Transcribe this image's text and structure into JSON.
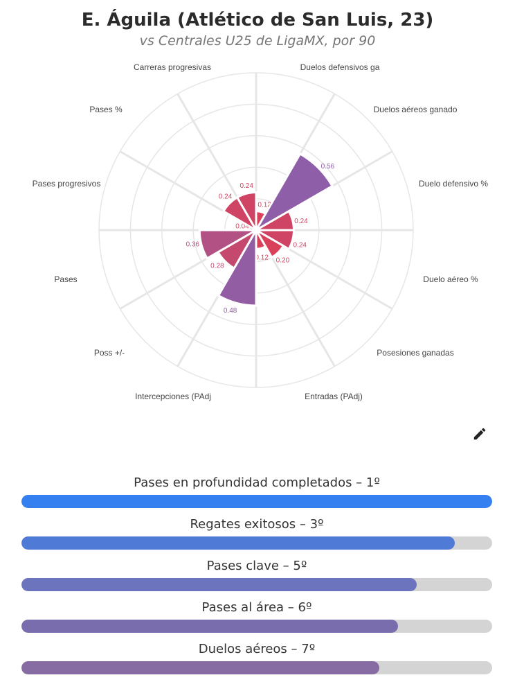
{
  "header": {
    "title": "E. Águila (Atlético de San Luis, 23)",
    "subtitle": "vs Centrales U25 de LigaMX, por 90"
  },
  "chart_data": {
    "type": "polar-bar",
    "title": "E. Águila (Atlético de San Luis, 23)",
    "subtitle": "vs Centrales U25 de LigaMX, por 90",
    "rlim": [
      0,
      1
    ],
    "grid": true,
    "categories": [
      "Duelos defensivos ga",
      "Duelos aéreos ganado",
      "Duelo defensivo %",
      "Duelo aéreo %",
      "Posesiones ganadas",
      "Entradas (PAdj)",
      "Intercepciones (PAdj",
      "Poss +/-",
      "Pases",
      "Pases progresivos",
      "Pases %",
      "Carreras progresivas"
    ],
    "values": [
      0.12,
      0.56,
      0.24,
      0.24,
      0.2,
      0.12,
      0.48,
      0.28,
      0.36,
      0.04,
      0.24,
      0.24
    ],
    "value_labels": [
      "0.12",
      "0.56",
      "0.24",
      "0.24",
      "0.20",
      "0.12",
      "0.48",
      "0.28",
      "0.36",
      "0.04",
      "0.24",
      "0.24"
    ],
    "colors": {
      "low": "#d9405a",
      "high": "#8e5fa8"
    }
  },
  "edit_icon": "pencil-icon",
  "rankings": [
    {
      "label": "Pases en profundidad completados – 1º",
      "percent": 100,
      "color": "#3580f0"
    },
    {
      "label": "Regates exitosos – 3º",
      "percent": 92,
      "color": "#4f7bd6"
    },
    {
      "label": "Pases clave – 5º",
      "percent": 84,
      "color": "#6c74bd"
    },
    {
      "label": "Pases al área – 6º",
      "percent": 80,
      "color": "#7a6dae"
    },
    {
      "label": "Duelos aéreos – 7º",
      "percent": 76,
      "color": "#876ca4"
    }
  ]
}
